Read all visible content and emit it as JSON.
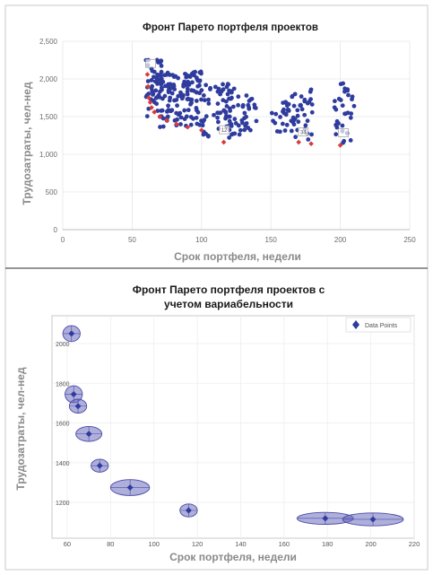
{
  "colors": {
    "point": "#2f3c9e",
    "pareto": "#d93a3a",
    "ellipse_fill": "#6e6ec0",
    "ellipse_stroke": "#4a4aa6",
    "grid": "#e6e6e6",
    "frame": "#bdbdbd"
  },
  "chart_data": [
    {
      "type": "scatter",
      "title": "Фронт Парето портфеля проектов",
      "xlabel": "Срок портфеля, недели",
      "ylabel": "Трудозатраты, чел-нед",
      "xlim": [
        0,
        250
      ],
      "ylim": [
        0,
        2500
      ],
      "xticks": [
        "0",
        "50",
        "100",
        "150",
        "200",
        "250"
      ],
      "yticks": [
        "0",
        "500",
        "1,000",
        "1,500",
        "2,000",
        "2,500"
      ],
      "grid": true,
      "clusters": [
        {
          "x_range": [
            60,
            72
          ],
          "y_range": [
            1500,
            2300
          ],
          "count": 55
        },
        {
          "x_range": [
            70,
            100
          ],
          "y_range": [
            1350,
            2100
          ],
          "count": 120
        },
        {
          "x_range": [
            100,
            125
          ],
          "y_range": [
            1200,
            1950
          ],
          "count": 70
        },
        {
          "x_range": [
            125,
            140
          ],
          "y_range": [
            1200,
            1850
          ],
          "count": 28
        },
        {
          "x_range": [
            150,
            165
          ],
          "y_range": [
            1280,
            1700
          ],
          "count": 25
        },
        {
          "x_range": [
            165,
            180
          ],
          "y_range": [
            1180,
            1860
          ],
          "count": 35
        },
        {
          "x_range": [
            195,
            210
          ],
          "y_range": [
            1150,
            1950
          ],
          "count": 32
        }
      ],
      "pareto_points": [
        {
          "x": 61,
          "y": 2060
        },
        {
          "x": 61.5,
          "y": 1900
        },
        {
          "x": 62,
          "y": 1750
        },
        {
          "x": 63,
          "y": 1690
        },
        {
          "x": 64,
          "y": 1620
        },
        {
          "x": 66,
          "y": 1560
        },
        {
          "x": 70,
          "y": 1500
        },
        {
          "x": 75,
          "y": 1450
        },
        {
          "x": 82,
          "y": 1400
        },
        {
          "x": 90,
          "y": 1360
        },
        {
          "x": 100,
          "y": 1320
        },
        {
          "x": 116,
          "y": 1160
        },
        {
          "x": 170,
          "y": 1160
        },
        {
          "x": 179,
          "y": 1140
        },
        {
          "x": 200,
          "y": 1120
        }
      ],
      "annotations": [
        {
          "x": 63,
          "y": 2200,
          "text": ""
        },
        {
          "x": 116,
          "y": 1320,
          "text": "12"
        },
        {
          "x": 173,
          "y": 1290,
          "text": "34"
        },
        {
          "x": 202,
          "y": 1280,
          "text": ""
        }
      ]
    },
    {
      "type": "scatter",
      "title": "Фронт Парето портфеля проектов с учетом вариабельности",
      "title_lines": [
        "Фронт Парето портфеля проектов с",
        "учетом вариабельности"
      ],
      "xlabel": "Срок портфеля, недели",
      "ylabel": "Трудозатраты, чел-нед",
      "xlim": [
        53,
        220
      ],
      "ylim": [
        1020,
        2140
      ],
      "xticks": [
        60,
        80,
        100,
        120,
        140,
        160,
        180,
        200,
        220
      ],
      "yticks": [
        1200,
        1400,
        1600,
        1800,
        2000
      ],
      "legend": "Data Points",
      "legend_position": "top-right",
      "grid": true,
      "points": [
        {
          "x": 62,
          "y": 2050,
          "sx": 4,
          "sy": 80
        },
        {
          "x": 63,
          "y": 1745,
          "sx": 4,
          "sy": 85
        },
        {
          "x": 65,
          "y": 1685,
          "sx": 4,
          "sy": 70
        },
        {
          "x": 70,
          "y": 1545,
          "sx": 6,
          "sy": 75
        },
        {
          "x": 75,
          "y": 1385,
          "sx": 4,
          "sy": 65
        },
        {
          "x": 89,
          "y": 1275,
          "sx": 9,
          "sy": 80
        },
        {
          "x": 116,
          "y": 1160,
          "sx": 4,
          "sy": 65
        },
        {
          "x": 179,
          "y": 1120,
          "sx": 13,
          "sy": 60
        },
        {
          "x": 201,
          "y": 1115,
          "sx": 14,
          "sy": 65
        }
      ]
    }
  ]
}
